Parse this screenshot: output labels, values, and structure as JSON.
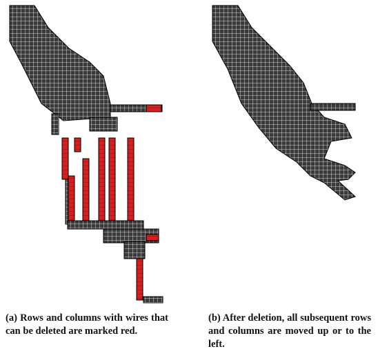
{
  "figure": {
    "subfigures": [
      {
        "caption": "(a) Rows and columns with wires that can be deleted are marked red."
      },
      {
        "caption": "(b) After deletion, all subsequent rows and columns are moved up or to the left."
      }
    ]
  }
}
